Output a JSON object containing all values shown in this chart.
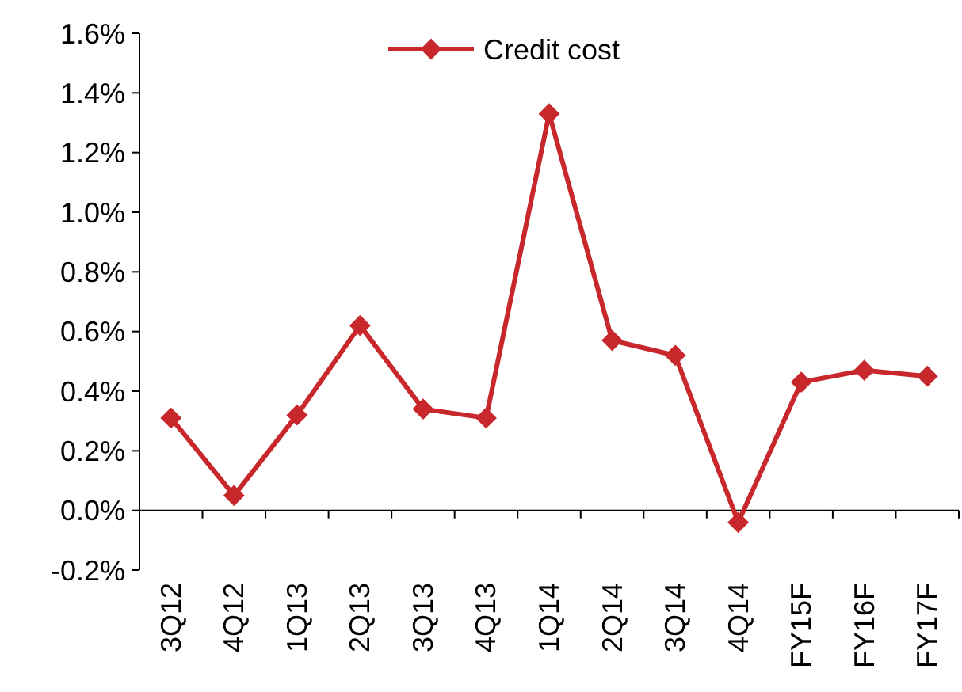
{
  "chart_data": {
    "type": "line",
    "categories": [
      "3Q12",
      "4Q12",
      "1Q13",
      "2Q13",
      "3Q13",
      "4Q13",
      "1Q14",
      "2Q14",
      "3Q14",
      "4Q14",
      "FY15F",
      "FY16F",
      "FY17F"
    ],
    "series": [
      {
        "name": "Credit cost",
        "color": "#c8282c",
        "values": [
          0.31,
          0.05,
          0.32,
          0.62,
          0.34,
          0.31,
          1.33,
          0.57,
          0.52,
          -0.04,
          0.43,
          0.47,
          0.45
        ]
      }
    ],
    "ylim": [
      -0.2,
      1.6
    ],
    "yticks": [
      {
        "value": -0.2,
        "label": "-0.2%"
      },
      {
        "value": 0,
        "label": "0.0%"
      },
      {
        "value": 0.2,
        "label": "0.2%"
      },
      {
        "value": 0.4,
        "label": "0.4%"
      },
      {
        "value": 0.6,
        "label": "0.6%"
      },
      {
        "value": 0.8,
        "label": "0.8%"
      },
      {
        "value": 1,
        "label": "1.0%"
      },
      {
        "value": 1.2,
        "label": "1.2%"
      },
      {
        "value": 1.4,
        "label": "1.4%"
      },
      {
        "value": 1.6,
        "label": "1.6%"
      }
    ],
    "grid": false,
    "legend": "top",
    "marker": "diamond",
    "line_style": "solid"
  }
}
